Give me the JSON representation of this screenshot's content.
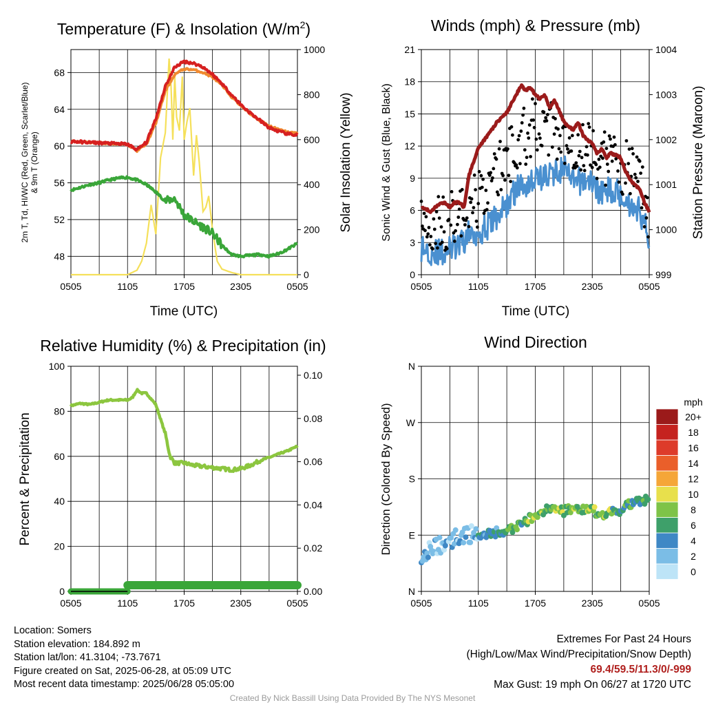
{
  "chart_data": [
    {
      "id": "temperature",
      "type": "line",
      "title": "Temperature (F) & Insolation (W/m²)",
      "xlabel": "Time (UTC)",
      "ylabel": "2m T, Td, HI/WC (Red, Green, Scarlet/Blue) & 9m T (Orange)",
      "ylabel_lines": [
        "2m T, Td, HI/WC (Red, Green, Scarlet/Blue)",
        "& 9m T (Orange)"
      ],
      "y2label": "Solar Insolation (Yellow)",
      "x_ticks": [
        "0505",
        "1105",
        "1705",
        "2305",
        "0505"
      ],
      "y_ticks": [
        "48",
        "52",
        "56",
        "60",
        "64",
        "68"
      ],
      "y2_ticks": [
        "0",
        "200",
        "400",
        "600",
        "800",
        "1000"
      ],
      "ylim": [
        46,
        70.5
      ],
      "y2lim": [
        0,
        1000
      ],
      "colors": {
        "temp_2m": "#d62020",
        "temp_9m": "#f08a30",
        "dewpoint": "#3aa639",
        "solar": "#f5e05a"
      },
      "series": [
        {
          "key": "temp_2m",
          "x_hours": [
            0,
            2,
            4,
            6,
            7,
            8,
            9,
            10,
            11,
            12,
            13,
            14,
            15,
            16,
            17,
            18,
            19,
            20,
            21,
            22,
            23,
            24
          ],
          "values": [
            60.5,
            60.4,
            60.3,
            60.2,
            59.6,
            60.4,
            63,
            66.5,
            68.6,
            69.2,
            69,
            68.6,
            67.8,
            66.8,
            65.6,
            64.5,
            63.6,
            62.8,
            62,
            61.6,
            61.3,
            61.2
          ]
        },
        {
          "key": "temp_9m",
          "x_hours": [
            0,
            2,
            4,
            6,
            7,
            8,
            9,
            10,
            11,
            12,
            13,
            14,
            15,
            16,
            17,
            18,
            19,
            20,
            21,
            22,
            23,
            24
          ],
          "values": [
            60.5,
            60.4,
            60.3,
            60.2,
            59.5,
            60.2,
            62.5,
            66,
            67.8,
            68.4,
            68.3,
            68,
            67.5,
            66.6,
            65.4,
            64.4,
            63.5,
            62.8,
            62.2,
            61.8,
            61.5,
            61.4
          ]
        },
        {
          "key": "dewpoint",
          "x_hours": [
            0,
            1,
            2,
            3,
            4,
            5,
            6,
            7,
            8,
            9,
            10,
            11,
            12,
            13,
            14,
            15,
            16,
            17,
            18,
            19,
            20,
            21,
            22,
            23,
            24
          ],
          "values": [
            55.2,
            55.5,
            55.8,
            56,
            56.3,
            56.5,
            56.6,
            56.3,
            55.8,
            55,
            54,
            54.3,
            52.5,
            51.8,
            51.2,
            50.5,
            49.2,
            48.2,
            48,
            48.1,
            48.2,
            48,
            48.3,
            48.8,
            49.4
          ]
        },
        {
          "key": "solar",
          "x_hours": [
            0,
            6,
            7,
            7.5,
            8,
            8.5,
            9,
            9.5,
            10,
            10.4,
            10.6,
            10.8,
            11,
            11.2,
            11.5,
            11.8,
            12,
            12.3,
            12.6,
            13,
            13.3,
            13.6,
            14,
            14.3,
            14.6,
            15,
            15.5,
            16,
            17,
            18,
            24
          ],
          "values": [
            0,
            0,
            20,
            60,
            140,
            310,
            180,
            520,
            630,
            960,
            850,
            600,
            880,
            700,
            640,
            880,
            600,
            680,
            740,
            440,
            620,
            500,
            280,
            300,
            350,
            200,
            60,
            25,
            10,
            0,
            0
          ]
        }
      ]
    },
    {
      "id": "winds",
      "type": "line",
      "title": "Winds (mph) & Pressure (mb)",
      "xlabel": "Time (UTC)",
      "ylabel": "Sonic Wind & Gust (Blue, Black)",
      "y2label": "Station Pressure (Maroon)",
      "x_ticks": [
        "0505",
        "1105",
        "1705",
        "2305",
        "0505"
      ],
      "y_ticks": [
        "0",
        "3",
        "6",
        "9",
        "12",
        "15",
        "18",
        "21"
      ],
      "y2_ticks": [
        "999",
        "1000",
        "1001",
        "1002",
        "1003",
        "1004"
      ],
      "ylim": [
        0,
        21
      ],
      "y2lim": [
        999,
        1004
      ],
      "colors": {
        "wind": "#4a90d0",
        "gust": "#000000",
        "pressure": "#9b1b1b"
      },
      "series": [
        {
          "key": "wind",
          "x_hours": [
            0,
            1,
            2,
            3,
            4,
            5,
            6,
            7,
            8,
            9,
            10,
            11,
            12,
            13,
            14,
            15,
            16,
            17,
            18,
            19,
            20,
            21,
            22,
            23,
            24
          ],
          "values": [
            2.5,
            2.2,
            2,
            2.4,
            2.6,
            3.8,
            4,
            4.5,
            5.5,
            6.5,
            8,
            8.5,
            9,
            9.2,
            9.5,
            10,
            8.5,
            8.8,
            8.6,
            7.5,
            8,
            7.6,
            6.5,
            6,
            3.5
          ]
        },
        {
          "key": "gust_mean",
          "x_hours": [
            0,
            2,
            4,
            6,
            8,
            10,
            12,
            14,
            16,
            18,
            20,
            22,
            24
          ],
          "values": [
            5,
            4.8,
            5.5,
            7,
            9.5,
            12,
            14,
            13.5,
            12.5,
            11.5,
            10.5,
            10,
            6
          ]
        },
        {
          "key": "pressure",
          "x_hours": [
            0,
            1,
            1.5,
            2,
            2.5,
            3,
            3.5,
            4,
            4.5,
            5,
            6,
            7,
            8,
            9,
            10,
            10.5,
            11,
            11.5,
            12,
            12.5,
            13,
            13.5,
            14,
            15,
            16,
            16.5,
            17,
            17.5,
            18,
            18.5,
            19,
            19.5,
            20,
            21,
            21.5,
            22,
            22.5,
            23,
            23.5,
            24
          ],
          "values": [
            1000.5,
            1000.4,
            1000.5,
            1000.6,
            1000.6,
            1000.5,
            1000.6,
            1000.6,
            1000.5,
            1001.2,
            1001.8,
            1002.1,
            1002.4,
            1002.6,
            1003,
            1003.2,
            1003.1,
            1003.15,
            1003,
            1002.9,
            1003,
            1002.7,
            1002.9,
            1002.4,
            1002.2,
            1002.4,
            1002.1,
            1002,
            1001.9,
            1001.7,
            1001.8,
            1001.6,
            1001.7,
            1001.6,
            1001.3,
            1001.1,
            1001,
            1000.9,
            1000.6,
            1000.4
          ]
        }
      ]
    },
    {
      "id": "humidity",
      "type": "line",
      "title": "Relative Humidity (%) & Precipitation (in)",
      "xlabel": "",
      "ylabel": "Percent & Precipitation",
      "x_ticks": [
        "0505",
        "1105",
        "1705",
        "2305",
        "0505"
      ],
      "y_ticks": [
        "0",
        "20",
        "40",
        "60",
        "80",
        "100"
      ],
      "y2_ticks": [
        "0.00",
        "0.02",
        "0.04",
        "0.06",
        "0.08",
        "0.10"
      ],
      "ylim": [
        0,
        100
      ],
      "y2lim": [
        0,
        0.1
      ],
      "colors": {
        "rh": "#8cc63f",
        "precip": "#3aa639"
      },
      "series": [
        {
          "key": "rh",
          "x_hours": [
            0,
            1,
            2,
            3,
            4,
            5,
            6,
            6.5,
            7,
            7.5,
            8,
            9,
            10,
            10.5,
            11,
            12,
            13,
            14,
            15,
            16,
            17,
            18,
            19,
            20,
            21,
            22,
            23,
            24
          ],
          "values": [
            82.5,
            83.5,
            83,
            84,
            85,
            85,
            85,
            86,
            89.5,
            88,
            88,
            83,
            70,
            60,
            57,
            57,
            56,
            55.5,
            55,
            54.5,
            54,
            54.5,
            56,
            58,
            59.5,
            61,
            62.5,
            64.5
          ]
        },
        {
          "key": "precip",
          "values": [
            0,
            0,
            0,
            0
          ]
        }
      ]
    },
    {
      "id": "wind_direction",
      "type": "scatter",
      "title": "Wind Direction",
      "ylabel": "Direction (Colored By Speed)",
      "x_ticks": [
        "0505",
        "1105",
        "1705",
        "2305",
        "0505"
      ],
      "y_ticks": [
        "N",
        "E",
        "S",
        "W",
        "N"
      ],
      "ylim": [
        0,
        360
      ],
      "legend_title": "mph",
      "legend_labels": [
        "0",
        "2",
        "4",
        "6",
        "8",
        "10",
        "12",
        "14",
        "16",
        "18",
        "20+"
      ],
      "legend_colors": [
        "#bde4f7",
        "#7bbde6",
        "#3f88c5",
        "#3ea06a",
        "#7ec348",
        "#e8e04c",
        "#f5a638",
        "#ea5f2a",
        "#dd3b2a",
        "#c5221f",
        "#9b1a1a"
      ],
      "direction_mean": {
        "x_hours": [
          0,
          1,
          2,
          3,
          4,
          5,
          6,
          7,
          8,
          9,
          10,
          11,
          12,
          13,
          14,
          15,
          16,
          17,
          18,
          19,
          20,
          21,
          22,
          23,
          24
        ],
        "values": [
          60,
          70,
          75,
          82,
          88,
          92,
          90,
          92,
          95,
          96,
          102,
          112,
          122,
          130,
          130,
          128,
          135,
          130,
          130,
          122,
          128,
          130,
          140,
          145,
          145
        ]
      }
    }
  ],
  "info": {
    "location": "Location: Somers",
    "elevation": "Station elevation: 184.892 m",
    "latlon": "Station lat/lon: 41.3104; -73.7671",
    "created": "Figure created on Sat, 2025-06-28, at 05:09 UTC",
    "recent": "Most recent data timestamp: 2025/06/28 05:05:00"
  },
  "extremes": {
    "title": "Extremes For Past 24 Hours",
    "subtitle": "(High/Low/Max Wind/Precipitation/Snow Depth)",
    "values": "69.4/59.5/11.3/0/-999",
    "gust": "Max Gust: 19 mph On 06/27 at 1720 UTC"
  },
  "credit": "Created By Nick Bassill Using Data Provided By The NYS Mesonet"
}
